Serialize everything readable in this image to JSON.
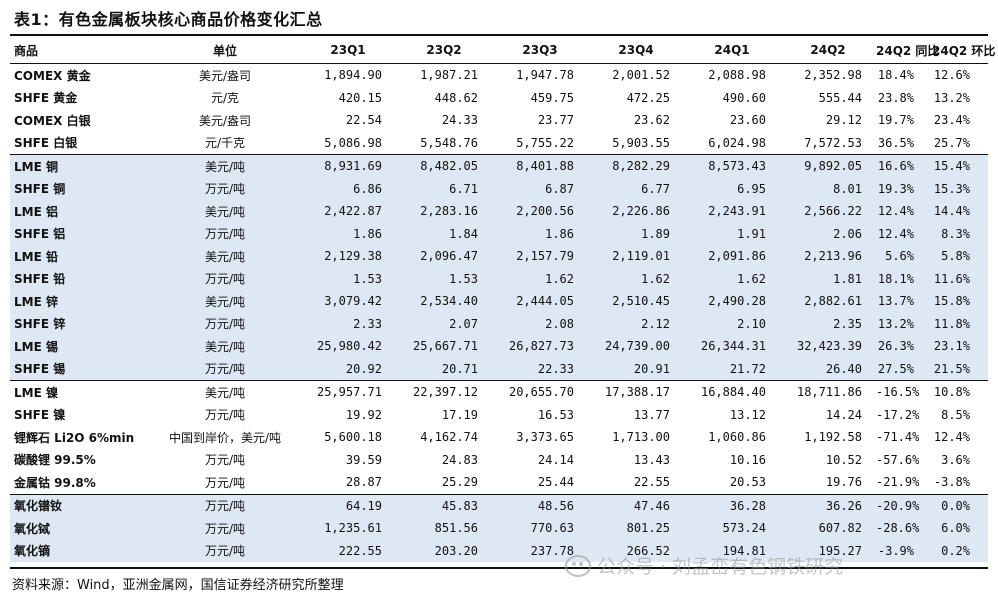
{
  "title": "表1：有色金属板块核心商品价格变化汇总",
  "columns": [
    "商品",
    "单位",
    "23Q1",
    "23Q2",
    "23Q3",
    "23Q4",
    "24Q1",
    "24Q2",
    "24Q2 同比",
    "24Q2 环比"
  ],
  "rows": [
    {
      "name": "COMEX 黄金",
      "unit": "美元/盎司",
      "q1": "1,894.90",
      "q2": "1,987.21",
      "q3": "1,947.78",
      "q4": "2,001.52",
      "q5": "2,088.98",
      "q6": "2,352.98",
      "yoy": "18.4%",
      "qoq": "12.6%"
    },
    {
      "name": "SHFE 黄金",
      "unit": "元/克",
      "q1": "420.15",
      "q2": "448.62",
      "q3": "459.75",
      "q4": "472.25",
      "q5": "490.60",
      "q6": "555.44",
      "yoy": "23.8%",
      "qoq": "13.2%"
    },
    {
      "name": "COMEX 白银",
      "unit": "美元/盎司",
      "q1": "22.54",
      "q2": "24.33",
      "q3": "23.77",
      "q4": "23.62",
      "q5": "23.60",
      "q6": "29.12",
      "yoy": "19.7%",
      "qoq": "23.4%"
    },
    {
      "name": "SHFE 白银",
      "unit": "元/千克",
      "q1": "5,086.98",
      "q2": "5,548.76",
      "q3": "5,755.22",
      "q4": "5,903.55",
      "q5": "6,024.98",
      "q6": "7,572.53",
      "yoy": "36.5%",
      "qoq": "25.7%"
    },
    {
      "name": "LME 铜",
      "unit": "美元/吨",
      "q1": "8,931.69",
      "q2": "8,482.05",
      "q3": "8,401.88",
      "q4": "8,282.29",
      "q5": "8,573.43",
      "q6": "9,892.05",
      "yoy": "16.6%",
      "qoq": "15.4%"
    },
    {
      "name": "SHFE 铜",
      "unit": "万元/吨",
      "q1": "6.86",
      "q2": "6.71",
      "q3": "6.87",
      "q4": "6.77",
      "q5": "6.95",
      "q6": "8.01",
      "yoy": "19.3%",
      "qoq": "15.3%"
    },
    {
      "name": "LME 铝",
      "unit": "美元/吨",
      "q1": "2,422.87",
      "q2": "2,283.16",
      "q3": "2,200.56",
      "q4": "2,226.86",
      "q5": "2,243.91",
      "q6": "2,566.22",
      "yoy": "12.4%",
      "qoq": "14.4%"
    },
    {
      "name": "SHFE 铝",
      "unit": "万元/吨",
      "q1": "1.86",
      "q2": "1.84",
      "q3": "1.86",
      "q4": "1.89",
      "q5": "1.91",
      "q6": "2.06",
      "yoy": "12.4%",
      "qoq": "8.3%"
    },
    {
      "name": "LME 铅",
      "unit": "美元/吨",
      "q1": "2,129.38",
      "q2": "2,096.47",
      "q3": "2,157.79",
      "q4": "2,119.01",
      "q5": "2,091.86",
      "q6": "2,213.96",
      "yoy": "5.6%",
      "qoq": "5.8%"
    },
    {
      "name": "SHFE 铅",
      "unit": "万元/吨",
      "q1": "1.53",
      "q2": "1.53",
      "q3": "1.62",
      "q4": "1.62",
      "q5": "1.62",
      "q6": "1.81",
      "yoy": "18.1%",
      "qoq": "11.6%"
    },
    {
      "name": "LME 锌",
      "unit": "美元/吨",
      "q1": "3,079.42",
      "q2": "2,534.40",
      "q3": "2,444.05",
      "q4": "2,510.45",
      "q5": "2,490.28",
      "q6": "2,882.61",
      "yoy": "13.7%",
      "qoq": "15.8%"
    },
    {
      "name": "SHFE 锌",
      "unit": "万元/吨",
      "q1": "2.33",
      "q2": "2.07",
      "q3": "2.08",
      "q4": "2.12",
      "q5": "2.10",
      "q6": "2.35",
      "yoy": "13.2%",
      "qoq": "11.8%"
    },
    {
      "name": "LME 锡",
      "unit": "美元/吨",
      "q1": "25,980.42",
      "q2": "25,667.71",
      "q3": "26,827.73",
      "q4": "24,739.00",
      "q5": "26,344.31",
      "q6": "32,423.39",
      "yoy": "26.3%",
      "qoq": "23.1%"
    },
    {
      "name": "SHFE 锡",
      "unit": "万元/吨",
      "q1": "20.92",
      "q2": "20.71",
      "q3": "22.33",
      "q4": "20.91",
      "q5": "21.72",
      "q6": "26.40",
      "yoy": "27.5%",
      "qoq": "21.5%"
    },
    {
      "name": "LME 镍",
      "unit": "美元/吨",
      "q1": "25,957.71",
      "q2": "22,397.12",
      "q3": "20,655.70",
      "q4": "17,388.17",
      "q5": "16,884.40",
      "q6": "18,711.86",
      "yoy": "-16.5%",
      "qoq": "10.8%"
    },
    {
      "name": "SHFE 镍",
      "unit": "万元/吨",
      "q1": "19.92",
      "q2": "17.19",
      "q3": "16.53",
      "q4": "13.77",
      "q5": "13.12",
      "q6": "14.24",
      "yoy": "-17.2%",
      "qoq": "8.5%"
    },
    {
      "name": "锂辉石 Li2O 6%min",
      "unit": "中国到岸价，美元/吨",
      "q1": "5,600.18",
      "q2": "4,162.74",
      "q3": "3,373.65",
      "q4": "1,713.00",
      "q5": "1,060.86",
      "q6": "1,192.58",
      "yoy": "-71.4%",
      "qoq": "12.4%"
    },
    {
      "name": "碳酸锂 99.5%",
      "unit": "万元/吨",
      "q1": "39.59",
      "q2": "24.83",
      "q3": "24.14",
      "q4": "13.43",
      "q5": "10.16",
      "q6": "10.52",
      "yoy": "-57.6%",
      "qoq": "3.6%"
    },
    {
      "name": "金属钴 99.8%",
      "unit": "万元/吨",
      "q1": "28.87",
      "q2": "25.29",
      "q3": "25.44",
      "q4": "22.55",
      "q5": "20.53",
      "q6": "19.76",
      "yoy": "-21.9%",
      "qoq": "-3.8%"
    },
    {
      "name": "氧化镨钕",
      "unit": "万元/吨",
      "q1": "64.19",
      "q2": "45.83",
      "q3": "48.56",
      "q4": "47.46",
      "q5": "36.28",
      "q6": "36.26",
      "yoy": "-20.9%",
      "qoq": "0.0%"
    },
    {
      "name": "氧化铽",
      "unit": "万元/吨",
      "q1": "1,235.61",
      "q2": "851.56",
      "q3": "770.63",
      "q4": "801.25",
      "q5": "573.24",
      "q6": "607.82",
      "yoy": "-28.6%",
      "qoq": "6.0%"
    },
    {
      "name": "氧化镝",
      "unit": "万元/吨",
      "q1": "222.55",
      "q2": "203.20",
      "q3": "237.78",
      "q4": "266.52",
      "q5": "194.81",
      "q6": "195.27",
      "yoy": "-3.9%",
      "qoq": "0.2%"
    }
  ],
  "source": "资料来源：Wind，亚洲金属网，国信证券经济研究所整理",
  "watermark": "公众号 · 刘孟峦有色钢铁研究"
}
